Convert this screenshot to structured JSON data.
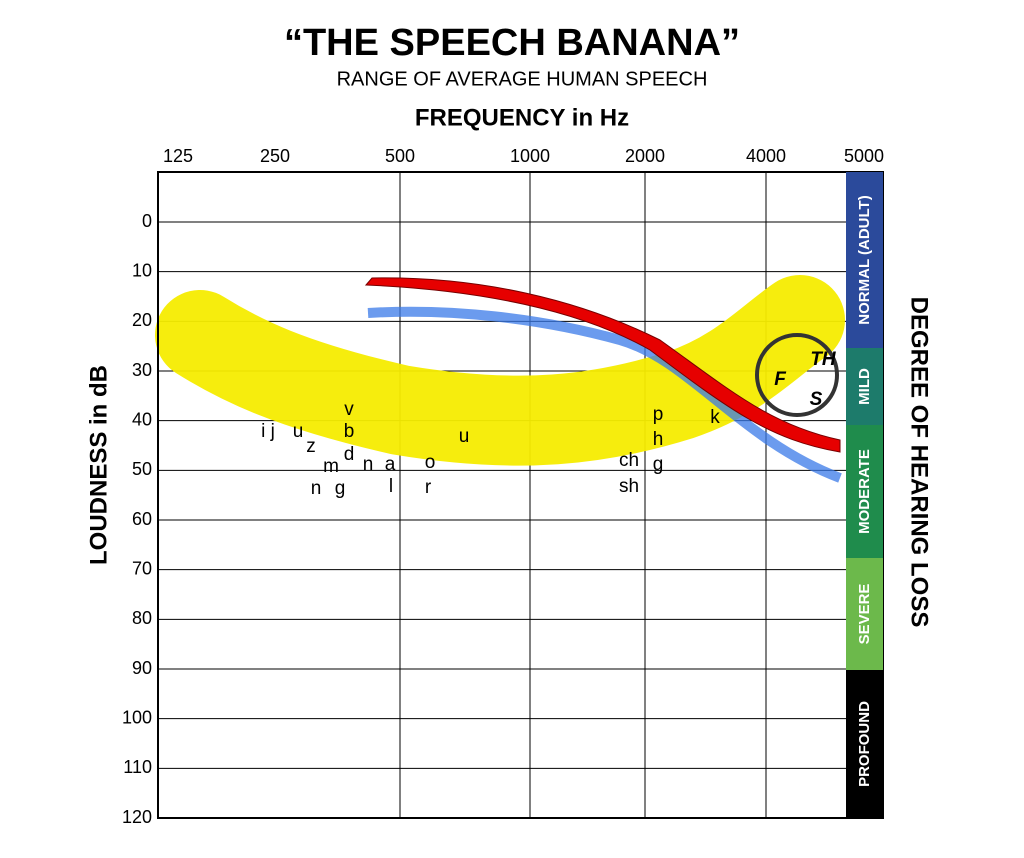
{
  "title": "“THE SPEECH BANANA”",
  "subtitle": "RANGE OF AVERAGE HUMAN SPEECH",
  "x_axis_label": "FREQUENCY in Hz",
  "y_axis_label": "LOUDNESS in dB",
  "right_axis_label": "DEGREE OF HEARING LOSS",
  "x_ticks": [
    125,
    250,
    500,
    1000,
    2000,
    4000,
    5000
  ],
  "y_ticks": [
    0,
    10,
    20,
    30,
    40,
    50,
    60,
    70,
    80,
    90,
    100,
    110,
    120
  ],
  "hearing_loss_levels": [
    "NORMAL (ADULT)",
    "MILD",
    "MODERATE",
    "SEVERE",
    "PROFOUND"
  ],
  "speech_sounds": [
    "i j",
    "u",
    "z",
    "m",
    "n",
    "g",
    "v",
    "b",
    "d",
    "n",
    "a",
    "l",
    "o",
    "r",
    "u",
    "p",
    "h",
    "g",
    "ch",
    "sh",
    "k",
    "F",
    "TH",
    "S"
  ]
}
